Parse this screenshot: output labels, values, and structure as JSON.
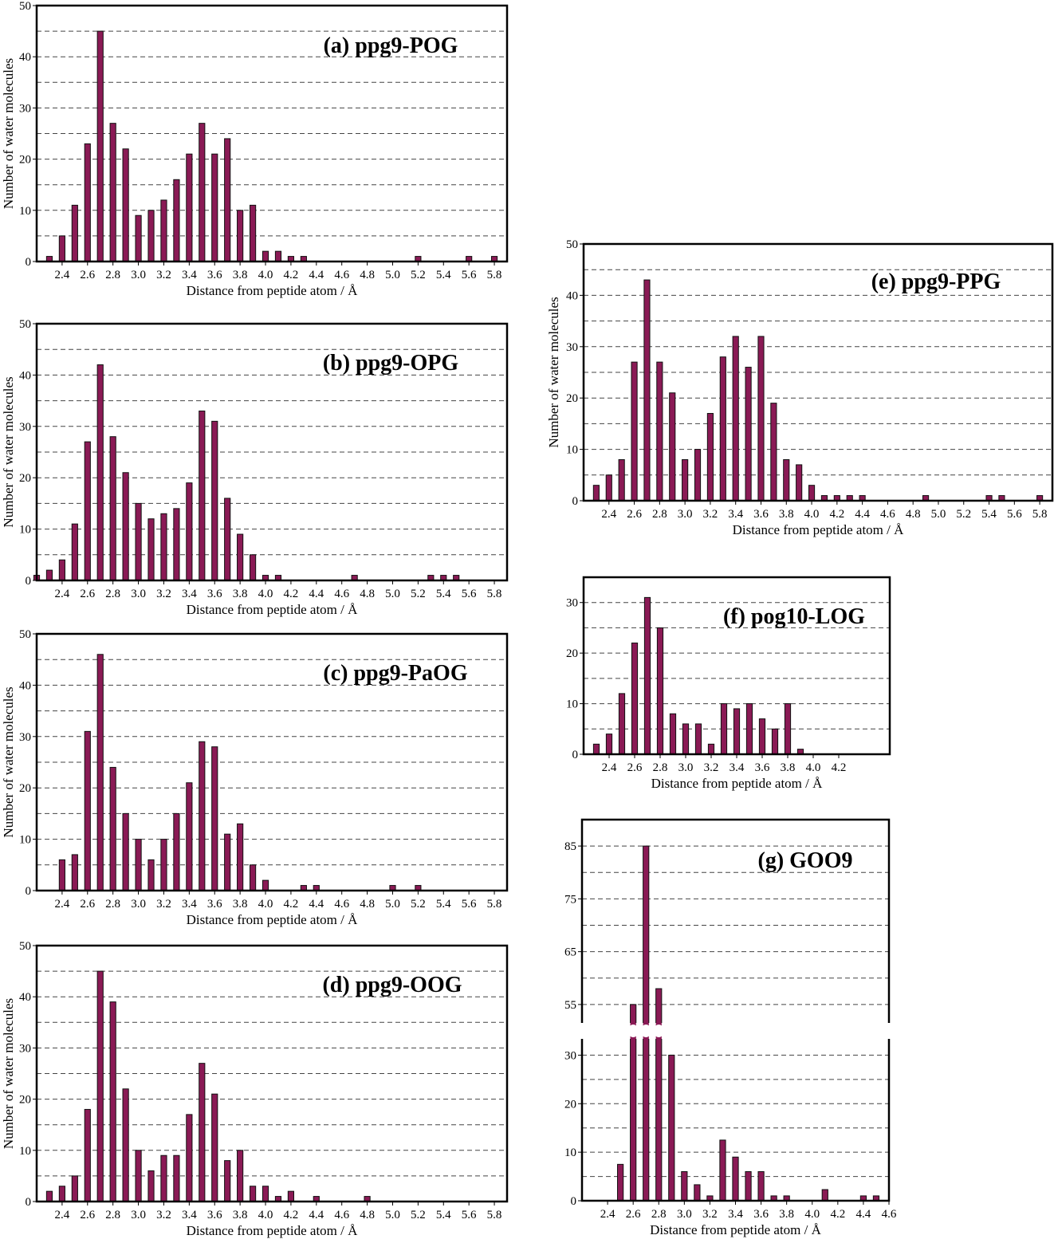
{
  "chart_data": [
    {
      "id": "a",
      "type": "bar",
      "title": "(a) ppg9-POG",
      "xlabel": "Distance from peptide atom / Å",
      "ylabel": "Number of water molecules",
      "xlim": [
        2.2,
        5.9
      ],
      "ylim": [
        0,
        50
      ],
      "xticks": [
        2.4,
        2.6,
        2.8,
        3.0,
        3.2,
        3.4,
        3.6,
        3.8,
        4.0,
        4.2,
        4.4,
        4.6,
        4.8,
        5.0,
        5.2,
        5.4,
        5.6,
        5.8
      ],
      "xtick_labels": [
        "2.4",
        "2.6",
        "2.8",
        "3.0",
        "3.2",
        "3.4",
        "3.6",
        "3.8",
        "4.0",
        "4.2",
        "4.4",
        "4.6",
        "4.8",
        "5.0",
        "5.2",
        "5.4",
        "5.6",
        "5.8"
      ],
      "yticks": [
        0,
        10,
        20,
        30,
        40,
        50
      ],
      "ytick_labels": [
        "0",
        "10",
        "20",
        "30",
        "40",
        "50"
      ],
      "grid": true,
      "x": [
        2.3,
        2.4,
        2.5,
        2.6,
        2.7,
        2.8,
        2.9,
        3.0,
        3.1,
        3.2,
        3.3,
        3.4,
        3.5,
        3.6,
        3.7,
        3.8,
        3.9,
        4.0,
        4.1,
        4.2,
        4.3,
        5.2,
        5.6,
        5.8
      ],
      "values": [
        1,
        5,
        11,
        23,
        45,
        27,
        22,
        9,
        10,
        12,
        16,
        21,
        27,
        21,
        24,
        10,
        11,
        2,
        2,
        1,
        1,
        1,
        1,
        1
      ]
    },
    {
      "id": "b",
      "type": "bar",
      "title": "(b) ppg9-OPG",
      "xlabel": "Distance from peptide atom / Å",
      "ylabel": "Number of water molecules",
      "xlim": [
        2.2,
        5.9
      ],
      "ylim": [
        0,
        50
      ],
      "xticks": [
        2.4,
        2.6,
        2.8,
        3.0,
        3.2,
        3.4,
        3.6,
        3.8,
        4.0,
        4.2,
        4.4,
        4.6,
        4.8,
        5.0,
        5.2,
        5.4,
        5.6,
        5.8
      ],
      "xtick_labels": [
        "2.4",
        "2.6",
        "2.8",
        "3.0",
        "3.2",
        "3.4",
        "3.6",
        "3.8",
        "4.0",
        "4.2",
        "4.4",
        "4.6",
        "4.8",
        "5.0",
        "5.2",
        "5.4",
        "5.6",
        "5.8"
      ],
      "yticks": [
        0,
        10,
        20,
        30,
        40,
        50
      ],
      "ytick_labels": [
        "0",
        "10",
        "20",
        "30",
        "40",
        "50"
      ],
      "grid": true,
      "x": [
        2.2,
        2.3,
        2.4,
        2.5,
        2.6,
        2.7,
        2.8,
        2.9,
        3.0,
        3.1,
        3.2,
        3.3,
        3.4,
        3.5,
        3.6,
        3.7,
        3.8,
        3.9,
        4.0,
        4.1,
        4.7,
        5.3,
        5.4,
        5.5
      ],
      "values": [
        1,
        2,
        4,
        11,
        27,
        42,
        28,
        21,
        15,
        12,
        13,
        14,
        19,
        33,
        31,
        16,
        9,
        5,
        1,
        1,
        1,
        1,
        1,
        1
      ]
    },
    {
      "id": "c",
      "type": "bar",
      "title": "(c) ppg9-PaOG",
      "xlabel": "Distance from peptide atom / Å",
      "ylabel": "Number of water molecules",
      "xlim": [
        2.2,
        5.9
      ],
      "ylim": [
        0,
        50
      ],
      "xticks": [
        2.4,
        2.6,
        2.8,
        3.0,
        3.2,
        3.4,
        3.6,
        3.8,
        4.0,
        4.2,
        4.4,
        4.6,
        4.8,
        5.0,
        5.2,
        5.4,
        5.6,
        5.8
      ],
      "xtick_labels": [
        "2.4",
        "2.6",
        "2.8",
        "3.0",
        "3.2",
        "3.4",
        "3.6",
        "3.8",
        "4.0",
        "4.2",
        "4.4",
        "4.6",
        "4.8",
        "5.0",
        "5.2",
        "5.4",
        "5.6",
        "5.8"
      ],
      "yticks": [
        0,
        10,
        20,
        30,
        40,
        50
      ],
      "ytick_labels": [
        "0",
        "10",
        "20",
        "30",
        "40",
        "50"
      ],
      "grid": true,
      "x": [
        2.4,
        2.5,
        2.6,
        2.7,
        2.8,
        2.9,
        3.0,
        3.1,
        3.2,
        3.3,
        3.4,
        3.5,
        3.6,
        3.7,
        3.8,
        3.9,
        4.0,
        4.3,
        4.4,
        5.0,
        5.2
      ],
      "values": [
        6,
        7,
        31,
        46,
        24,
        15,
        10,
        6,
        10,
        15,
        21,
        29,
        28,
        11,
        13,
        5,
        2,
        1,
        1,
        1,
        1
      ]
    },
    {
      "id": "d",
      "type": "bar",
      "title": "(d) ppg9-OOG",
      "xlabel": "Distance from peptide atom / Å",
      "ylabel": "Number of water molecules",
      "xlim": [
        2.2,
        5.9
      ],
      "ylim": [
        0,
        50
      ],
      "xticks": [
        2.4,
        2.6,
        2.8,
        3.0,
        3.2,
        3.4,
        3.6,
        3.8,
        4.0,
        4.2,
        4.4,
        4.6,
        4.8,
        5.0,
        5.2,
        5.4,
        5.6,
        5.8
      ],
      "xtick_labels": [
        "2.4",
        "2.6",
        "2.8",
        "3.0",
        "3.2",
        "3.4",
        "3.6",
        "3.8",
        "4.0",
        "4.2",
        "4.4",
        "4.6",
        "4.8",
        "5.0",
        "5.2",
        "5.4",
        "5.6",
        "5.8"
      ],
      "yticks": [
        0,
        10,
        20,
        30,
        40,
        50
      ],
      "ytick_labels": [
        "0",
        "10",
        "20",
        "30",
        "40",
        "50"
      ],
      "grid": true,
      "x": [
        2.3,
        2.4,
        2.5,
        2.6,
        2.7,
        2.8,
        2.9,
        3.0,
        3.1,
        3.2,
        3.3,
        3.4,
        3.5,
        3.6,
        3.7,
        3.8,
        3.9,
        4.0,
        4.1,
        4.2,
        4.4,
        4.8
      ],
      "values": [
        2,
        3,
        5,
        18,
        45,
        39,
        22,
        10,
        6,
        9,
        9,
        17,
        27,
        21,
        8,
        10,
        3,
        3,
        1,
        2,
        1,
        1
      ]
    },
    {
      "id": "e",
      "type": "bar",
      "title": "(e) ppg9-PPG",
      "xlabel": "Distance from peptide atom / Å",
      "ylabel": "Number of water molecules",
      "xlim": [
        2.2,
        5.9
      ],
      "ylim": [
        0,
        50
      ],
      "xticks": [
        2.4,
        2.6,
        2.8,
        3.0,
        3.2,
        3.4,
        3.6,
        3.8,
        4.0,
        4.2,
        4.4,
        4.6,
        4.8,
        5.0,
        5.2,
        5.4,
        5.6,
        5.8
      ],
      "xtick_labels": [
        "2.4",
        "2.6",
        "2.8",
        "3.0",
        "3.2",
        "3.4",
        "3.6",
        "3.8",
        "4.0",
        "4.2",
        "4.4",
        "4.6",
        "4.8",
        "5.0",
        "5.2",
        "5.4",
        "5.6",
        "5.8"
      ],
      "yticks": [
        0,
        10,
        20,
        30,
        40,
        50
      ],
      "ytick_labels": [
        "0",
        "10",
        "20",
        "30",
        "40",
        "50"
      ],
      "grid": true,
      "x": [
        2.3,
        2.4,
        2.5,
        2.6,
        2.7,
        2.8,
        2.9,
        3.0,
        3.1,
        3.2,
        3.3,
        3.4,
        3.5,
        3.6,
        3.7,
        3.8,
        3.9,
        4.0,
        4.1,
        4.2,
        4.3,
        4.4,
        4.9,
        5.4,
        5.5,
        5.8
      ],
      "values": [
        3,
        5,
        8,
        27,
        43,
        27,
        21,
        8,
        10,
        17,
        28,
        32,
        26,
        32,
        19,
        8,
        7,
        3,
        1,
        1,
        1,
        1,
        1,
        1,
        1,
        1
      ]
    },
    {
      "id": "f",
      "type": "bar",
      "title": "(f) pog10-LOG",
      "xlabel": "Distance from peptide atom / Å",
      "ylabel": "",
      "xlim": [
        2.2,
        4.6
      ],
      "ylim": [
        0,
        35
      ],
      "xticks": [
        2.4,
        2.6,
        2.8,
        3.0,
        3.2,
        3.4,
        3.6,
        3.8,
        4.0,
        4.2
      ],
      "xtick_labels": [
        "2.4",
        "2.6",
        "2.8",
        "3.0",
        "3.2",
        "3.4",
        "3.6",
        "3.8",
        "4.0",
        "4.2"
      ],
      "yticks": [
        0,
        10,
        20,
        30
      ],
      "ytick_labels": [
        "0",
        "10",
        "20",
        "30"
      ],
      "grid": true,
      "x": [
        2.3,
        2.4,
        2.5,
        2.6,
        2.7,
        2.8,
        2.9,
        3.0,
        3.1,
        3.2,
        3.3,
        3.4,
        3.5,
        3.6,
        3.7,
        3.8,
        3.9
      ],
      "values": [
        2,
        4,
        12,
        22,
        31,
        25,
        8,
        6,
        6,
        2,
        10,
        9,
        10,
        7,
        5,
        10,
        1
      ]
    },
    {
      "id": "g",
      "type": "bar",
      "title": "(g) GOO9",
      "xlabel": "Distance from peptide atom / Å",
      "ylabel": "",
      "xlim": [
        2.2,
        4.6
      ],
      "broken_axis": true,
      "ylim_lower": [
        0,
        35
      ],
      "ylim_upper": [
        50,
        90
      ],
      "xticks": [
        2.4,
        2.6,
        2.8,
        3.0,
        3.2,
        3.4,
        3.6,
        3.8,
        4.0,
        4.2,
        4.4,
        4.6
      ],
      "xtick_labels": [
        "2.4",
        "2.6",
        "2.8",
        "3.0",
        "3.2",
        "3.4",
        "3.6",
        "3.8",
        "4.0",
        "4.2",
        "4.4",
        "4.6"
      ],
      "yticks_lower": [
        0,
        10,
        20,
        30
      ],
      "ytick_labels_lower": [
        "0",
        "10",
        "20",
        "30"
      ],
      "yticks_upper": [
        55,
        65,
        75,
        85
      ],
      "ytick_labels_upper": [
        "55",
        "65",
        "75",
        "85"
      ],
      "grid": true,
      "x": [
        2.5,
        2.6,
        2.7,
        2.8,
        2.9,
        3.0,
        3.1,
        3.2,
        3.3,
        3.4,
        3.5,
        3.6,
        3.7,
        3.8,
        4.1,
        4.4,
        4.5
      ],
      "values": [
        7.5,
        55,
        85,
        58,
        30,
        6,
        3.3,
        1,
        12.5,
        9,
        6,
        6,
        1,
        1,
        2.3,
        1,
        1
      ]
    }
  ]
}
